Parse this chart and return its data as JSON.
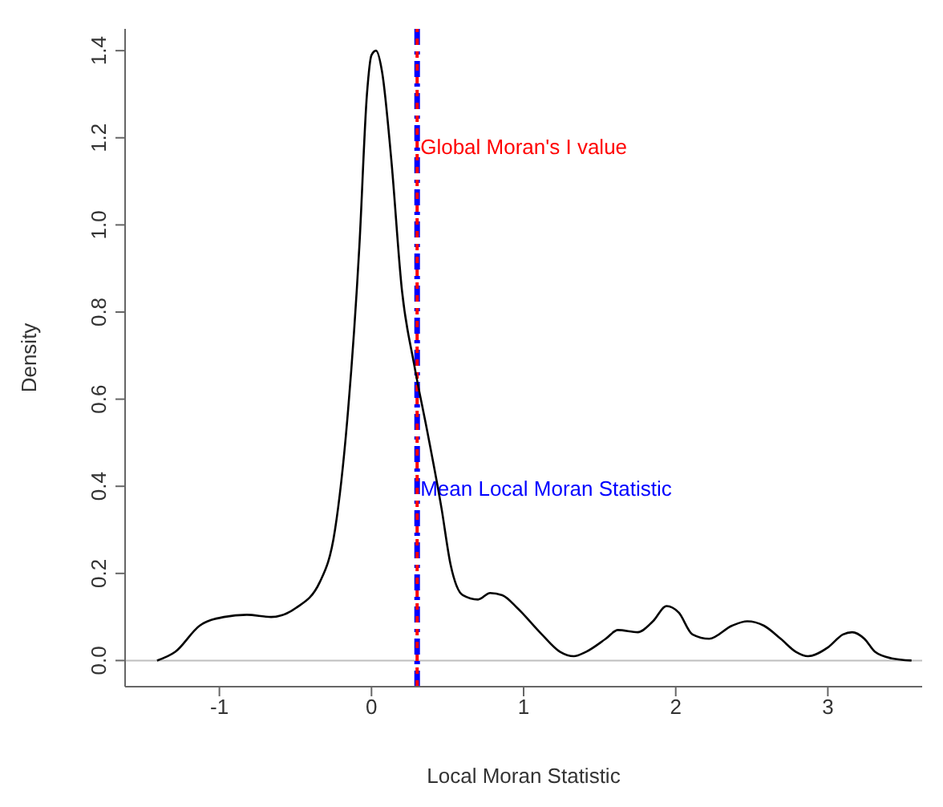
{
  "chart_data": {
    "type": "line",
    "xlabel": "Local Moran Statistic",
    "ylabel": "Density",
    "x": [
      -1.41,
      -1.29,
      -1.13,
      -0.97,
      -0.82,
      -0.66,
      -0.5,
      -0.34,
      -0.24,
      -0.16,
      -0.08,
      -0.03,
      0,
      0.03,
      0.07,
      0.13,
      0.2,
      0.28,
      0.37,
      0.46,
      0.52,
      0.6,
      0.7,
      0.78,
      0.86,
      0.96,
      1.12,
      1.24,
      1.33,
      1.41,
      1.54,
      1.62,
      1.75,
      1.85,
      1.94,
      2.02,
      2.11,
      2.22,
      2.37,
      2.47,
      2.58,
      2.69,
      2.79,
      2.87,
      3,
      3.1,
      3.16,
      3.24,
      3.31,
      3.42,
      3.55
    ],
    "series": [
      {
        "color": "#000000",
        "values": [
          0,
          0.02,
          0.08,
          0.1,
          0.105,
          0.1,
          0.12,
          0.18,
          0.3,
          0.55,
          0.95,
          1.3,
          1.39,
          1.4,
          1.35,
          1.15,
          0.85,
          0.68,
          0.52,
          0.35,
          0.22,
          0.15,
          0.14,
          0.155,
          0.15,
          0.12,
          0.06,
          0.02,
          0.01,
          0.02,
          0.05,
          0.07,
          0.065,
          0.09,
          0.125,
          0.11,
          0.06,
          0.05,
          0.08,
          0.09,
          0.08,
          0.05,
          0.02,
          0.01,
          0.03,
          0.06,
          0.065,
          0.05,
          0.02,
          0.005,
          0
        ]
      }
    ],
    "xlim": [
      -1.62,
      3.62
    ],
    "xticks": [
      -1,
      0,
      1,
      2,
      3
    ],
    "ylim": [
      -0.06,
      1.45
    ],
    "yticks": [
      {
        "value": 0,
        "label": "0.0"
      },
      {
        "value": 0.2,
        "label": "0.2"
      },
      {
        "value": 0.4,
        "label": "0.4"
      },
      {
        "value": 0.6,
        "label": "0.6"
      },
      {
        "value": 0.8,
        "label": "0.8"
      },
      {
        "value": 1,
        "label": "1.0"
      },
      {
        "value": 1.2,
        "label": "1.2"
      },
      {
        "value": 1.4,
        "label": "1.4"
      }
    ],
    "ref_lines": [
      {
        "axis": "y",
        "value": 0,
        "label": null,
        "color": "#bebebe",
        "line_style": "solid"
      },
      {
        "axis": "x",
        "value": 0.3,
        "label": "Mean Local Moran Statistic",
        "color": "#0000ff",
        "line_style": "dashed"
      },
      {
        "axis": "x",
        "value": 0.3,
        "label": "Global Moran's I value",
        "color": "#ff0000",
        "line_style": "dotted"
      }
    ],
    "grid": false,
    "legend": false,
    "marker": "none",
    "line_style": "solid"
  }
}
